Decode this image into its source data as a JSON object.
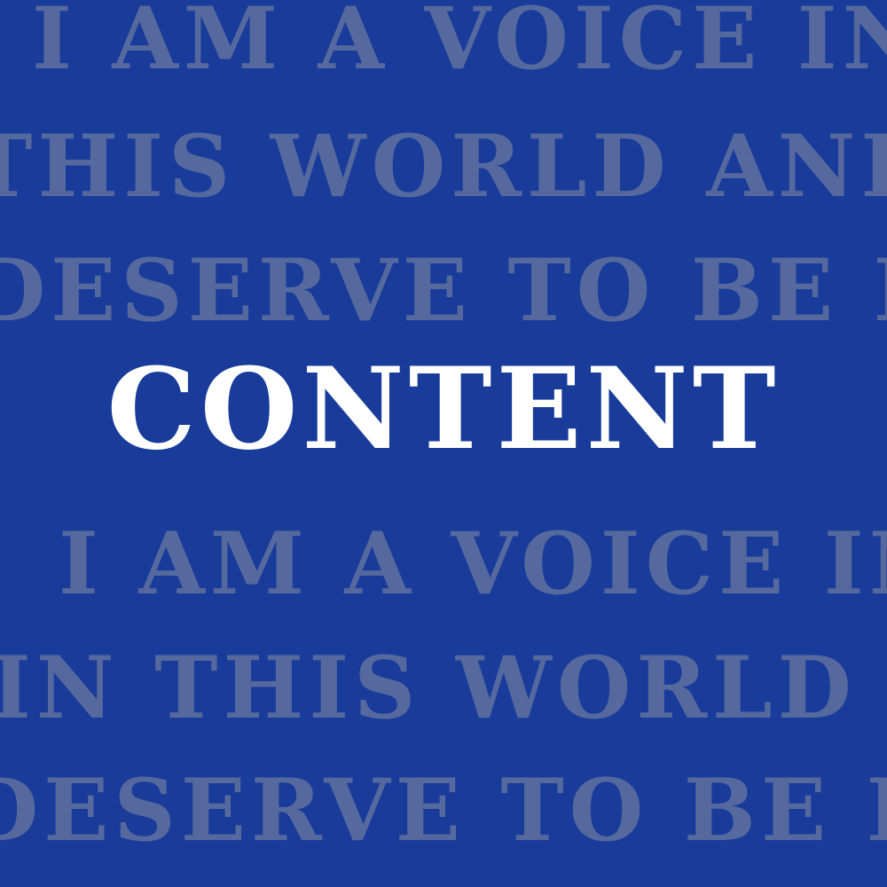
{
  "background": {
    "color": "#193c9a",
    "text_color": "#56699f",
    "lines": [
      "I AM A VOICE IN",
      "THIS WORLD AND I",
      "DESERVE TO BE HEARD",
      "I AM A VOICE IN",
      "IN THIS WORLD AND",
      "DESERVE TO BE HEARD"
    ]
  },
  "headline": {
    "text": "CONTENT",
    "color": "#ffffff"
  }
}
